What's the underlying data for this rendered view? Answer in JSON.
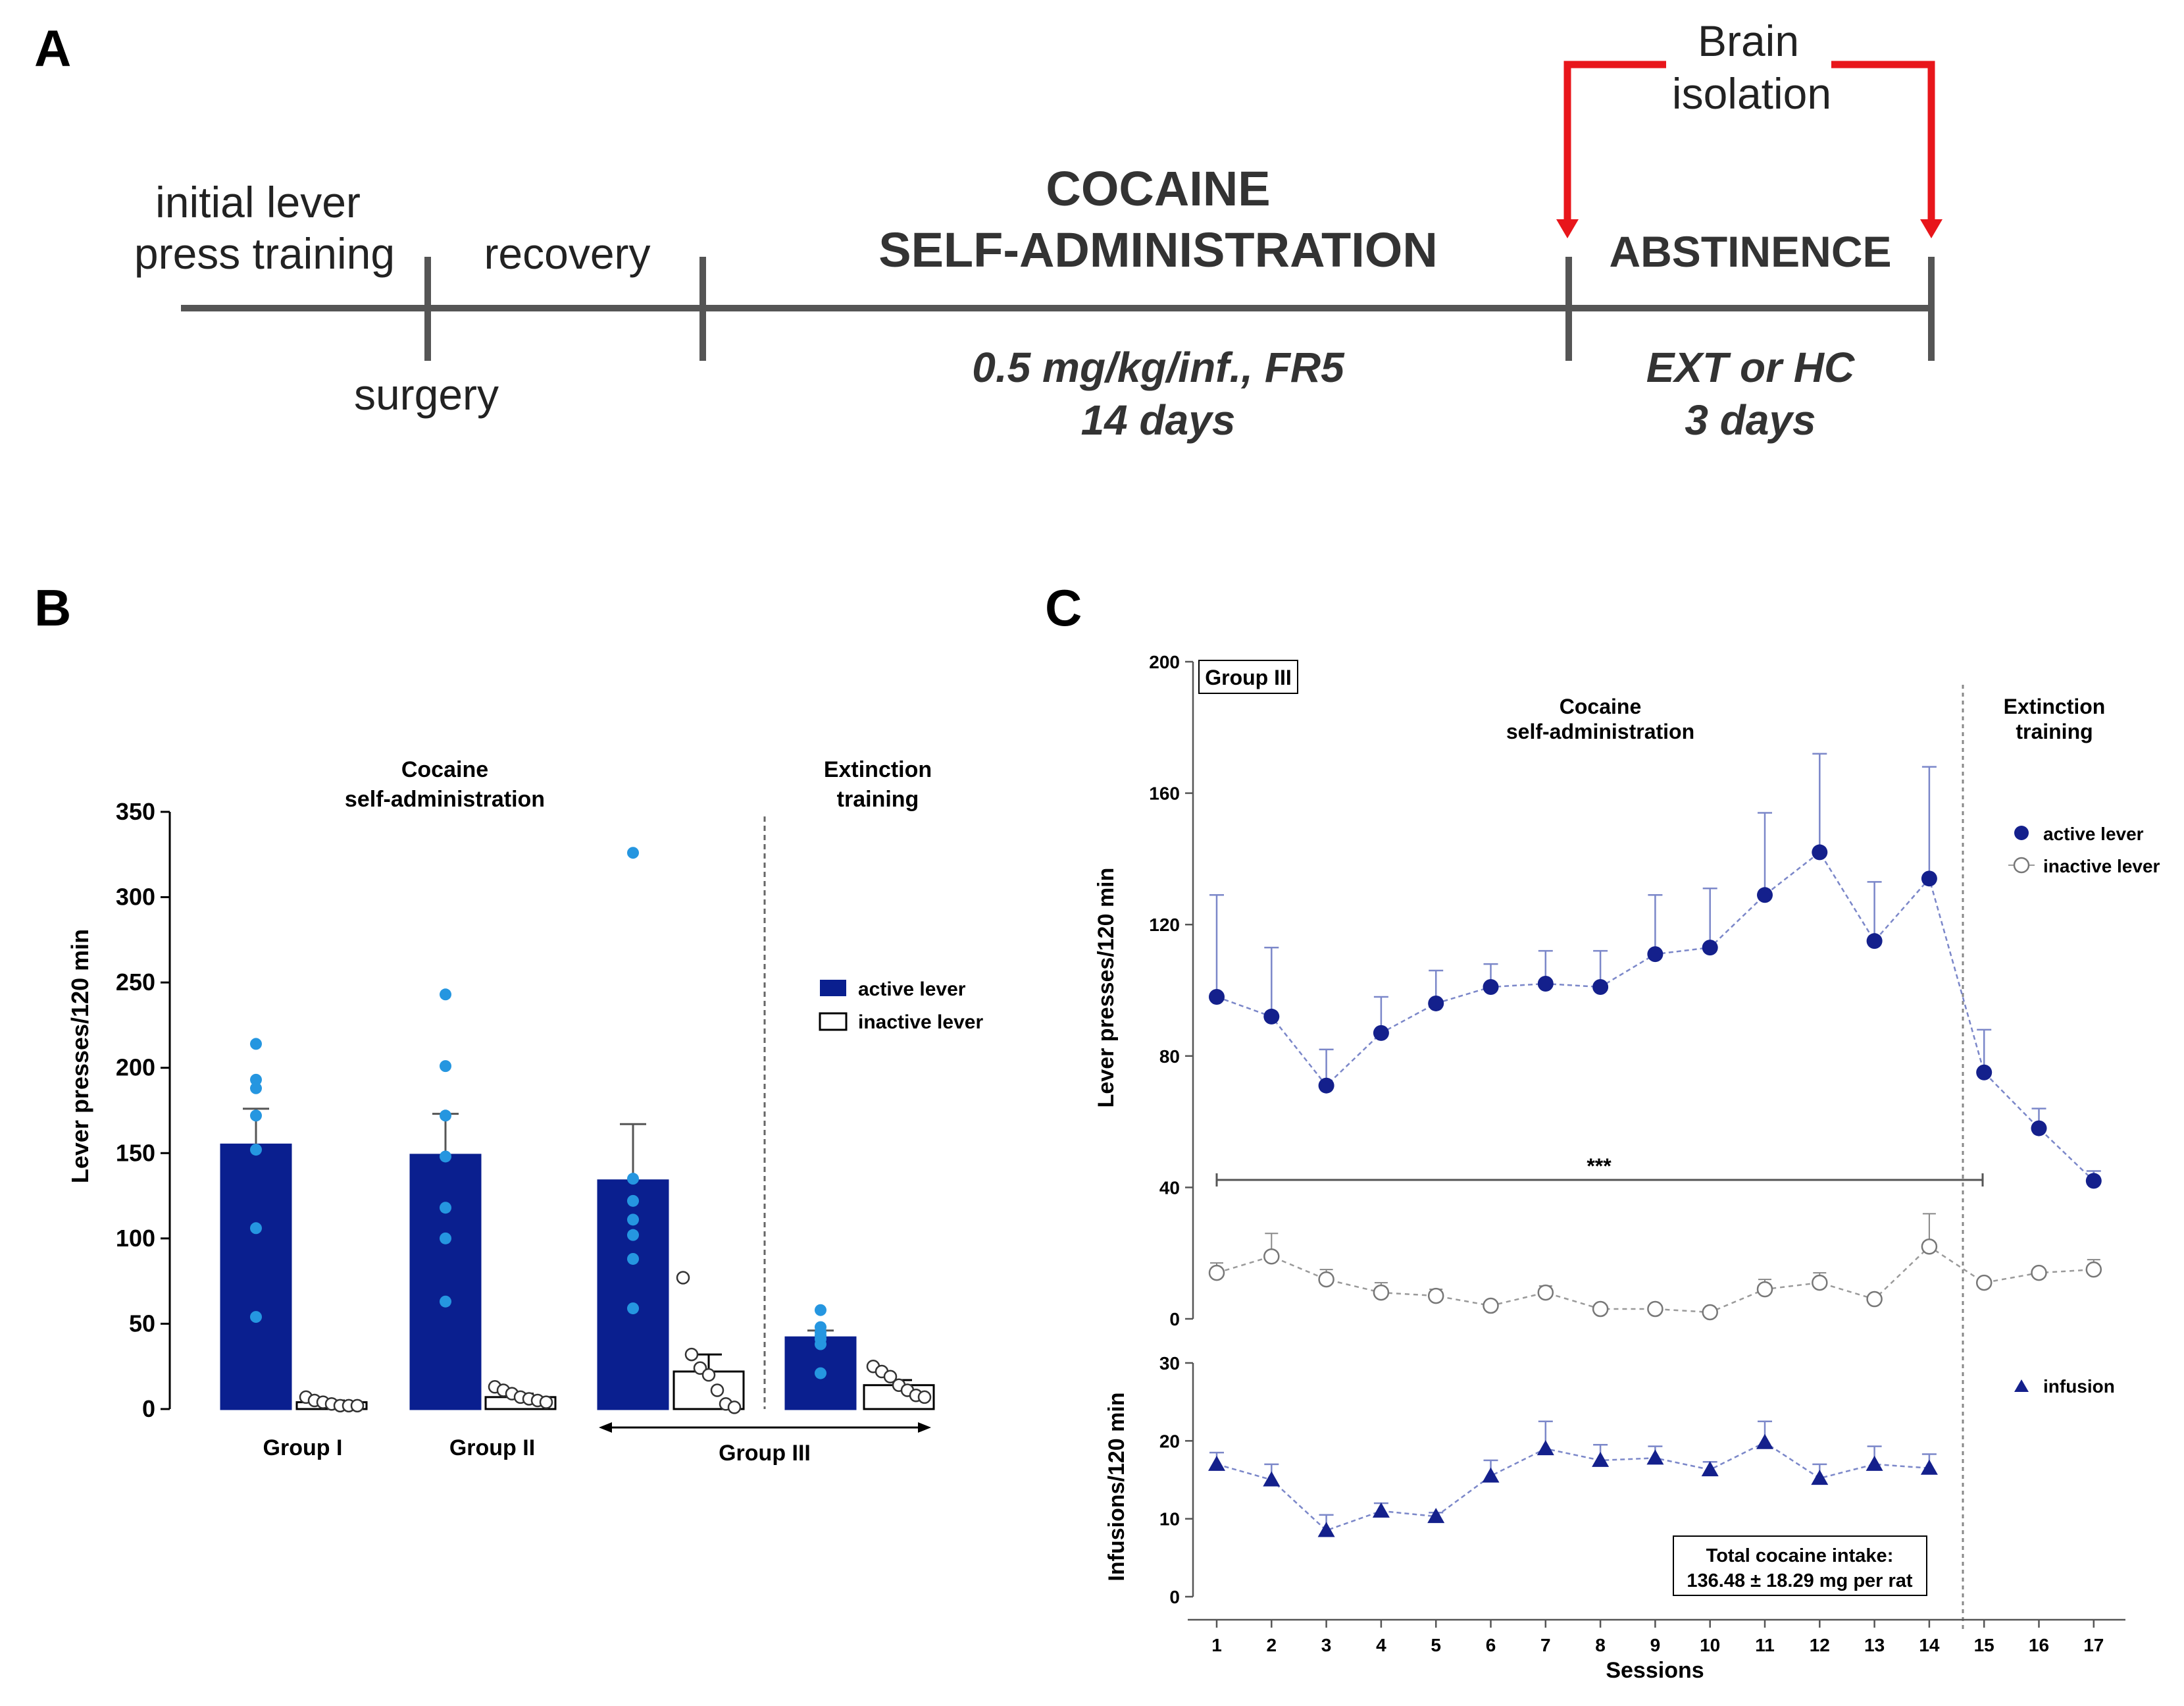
{
  "panels": {
    "a": {
      "letter": "A"
    },
    "b": {
      "letter": "B"
    },
    "c": {
      "letter": "C"
    }
  },
  "timeline": {
    "initial_training": [
      "initial lever",
      "press training"
    ],
    "recovery": "recovery",
    "surgery": "surgery",
    "sa_title": [
      "COCAINE",
      "SELF-ADMINISTRATION"
    ],
    "sa_dose": [
      "0.5 mg/kg/inf.,  FR5",
      "14 days"
    ],
    "abstinence": "ABSTINENCE",
    "abstinence_detail": [
      "EXT or HC",
      "3 days"
    ],
    "brain_isolation": [
      "Brain",
      "isolation"
    ],
    "colors": {
      "line": "#555555",
      "arrow": "#e8161b"
    }
  },
  "chart_data": [
    {
      "panel": "B",
      "type": "bar",
      "ylabel": "Lever presses/120 min",
      "ylim": [
        0,
        350
      ],
      "yticks": [
        "0",
        "50",
        "100",
        "150",
        "200",
        "250",
        "300",
        "350"
      ],
      "section_labels": [
        [
          "Cocaine",
          "self-administration"
        ],
        [
          "Extinction",
          "training"
        ]
      ],
      "group_labels": [
        "Group I",
        "Group II",
        "Group III"
      ],
      "legend": {
        "active": "active lever",
        "inactive": "inactive lever"
      },
      "colors": {
        "active": "#0a1f8f",
        "dot": "#2596e0",
        "inactive_fill": "#ffffff"
      },
      "bars": [
        {
          "lever": "active",
          "mean": 155,
          "sem": 21,
          "points": [
            214,
            193,
            188,
            172,
            152,
            106,
            54
          ]
        },
        {
          "lever": "inactive",
          "mean": 4,
          "sem": 1,
          "points": [
            7,
            5,
            4,
            3,
            2,
            2,
            2
          ]
        },
        {
          "lever": "active",
          "mean": 149,
          "sem": 24,
          "points": [
            243,
            201,
            172,
            148,
            118,
            100,
            63
          ]
        },
        {
          "lever": "inactive",
          "mean": 7,
          "sem": 2,
          "points": [
            13,
            11,
            9,
            7,
            6,
            5,
            4
          ]
        },
        {
          "lever": "active",
          "mean": 134,
          "sem": 33,
          "points": [
            326,
            135,
            122,
            111,
            102,
            88,
            59
          ]
        },
        {
          "lever": "inactive",
          "mean": 22,
          "sem": 10,
          "points": [
            77,
            32,
            24,
            20,
            11,
            3,
            1
          ]
        },
        {
          "lever": "active",
          "mean": 42,
          "sem": 4,
          "points": [
            58,
            48,
            45,
            43,
            41,
            38,
            21
          ]
        },
        {
          "lever": "inactive",
          "mean": 14,
          "sem": 3,
          "points": [
            25,
            22,
            19,
            14,
            11,
            8,
            7
          ]
        }
      ]
    },
    {
      "panel": "C-upper",
      "type": "line",
      "group_label": "Group III",
      "section_labels": [
        [
          "Cocaine",
          "self-administration"
        ],
        [
          "Extinction",
          "training"
        ]
      ],
      "ylabel": "Lever presses/120 min",
      "ylim": [
        0,
        200
      ],
      "yticks": [
        "0",
        "40",
        "80",
        "120",
        "160",
        "200"
      ],
      "significance": "***",
      "series": [
        {
          "name": "active lever",
          "x": [
            1,
            2,
            3,
            4,
            5,
            6,
            7,
            8,
            9,
            10,
            11,
            12,
            13,
            14,
            15,
            16,
            17
          ],
          "values": [
            98,
            92,
            71,
            87,
            96,
            101,
            102,
            101,
            111,
            113,
            129,
            142,
            115,
            134,
            75,
            58,
            42
          ],
          "sem": [
            31,
            21,
            11,
            11,
            10,
            7,
            10,
            11,
            18,
            18,
            25,
            30,
            18,
            34,
            13,
            6,
            3
          ]
        },
        {
          "name": "inactive lever",
          "x": [
            1,
            2,
            3,
            4,
            5,
            6,
            7,
            8,
            9,
            10,
            11,
            12,
            13,
            14,
            15,
            16,
            17
          ],
          "values": [
            14,
            19,
            12,
            8,
            7,
            4,
            8,
            3,
            3,
            2,
            9,
            11,
            6,
            22,
            11,
            14,
            15
          ],
          "sem": [
            3,
            7,
            3,
            3,
            2,
            1,
            2,
            1,
            1,
            1,
            3,
            3,
            1,
            10,
            1,
            1,
            3
          ]
        }
      ],
      "colors": {
        "active": "#14208c",
        "line": "#7b87c9",
        "inactive_line": "#9a9a9a"
      }
    },
    {
      "panel": "C-lower",
      "type": "line",
      "ylabel": "Infusions/120 min",
      "xlabel": "Sessions",
      "ylim": [
        0,
        30
      ],
      "yticks": [
        "0",
        "10",
        "20",
        "30"
      ],
      "xticks": [
        "1",
        "2",
        "3",
        "4",
        "5",
        "6",
        "7",
        "8",
        "9",
        "10",
        "11",
        "12",
        "13",
        "14",
        "15",
        "16",
        "17"
      ],
      "series": [
        {
          "name": "infusion",
          "x": [
            1,
            2,
            3,
            4,
            5,
            6,
            7,
            8,
            9,
            10,
            11,
            12,
            13,
            14
          ],
          "values": [
            17,
            15,
            8.5,
            11,
            10.3,
            15.5,
            19,
            17.5,
            17.8,
            16.3,
            19.8,
            15.2,
            17,
            16.5
          ],
          "sem": [
            1.5,
            2,
            2,
            1,
            0.5,
            2,
            3.5,
            2,
            1.5,
            1,
            2.7,
            1.8,
            2.3,
            1.8
          ]
        }
      ],
      "note": [
        "Total cocaine intake:",
        "136.48 ± 18.29 mg per rat"
      ]
    }
  ]
}
